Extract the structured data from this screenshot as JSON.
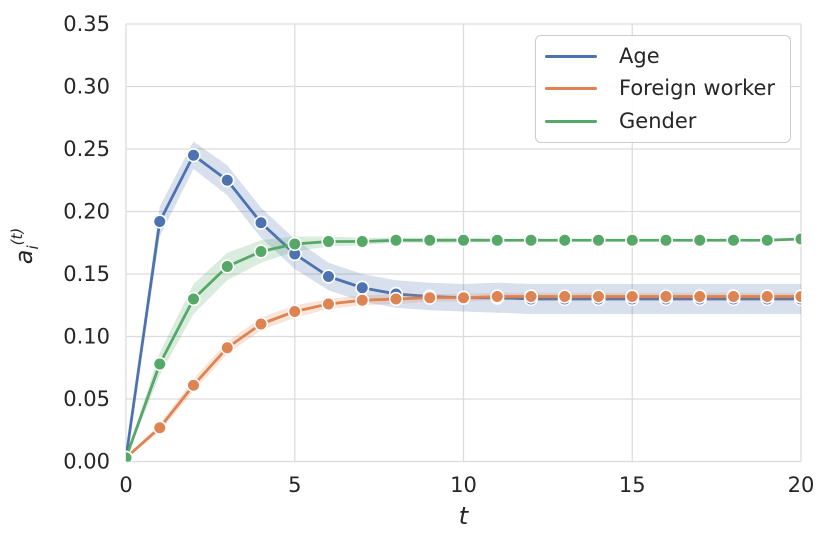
{
  "chart_data": {
    "type": "line",
    "title": "",
    "xlabel": "t",
    "ylabel": "a_i^(t)",
    "ylabel_parts": {
      "base": "a",
      "sub": "i",
      "sup": "(t)"
    },
    "xlim": [
      0,
      20
    ],
    "ylim": [
      0.0,
      0.35
    ],
    "xticks": [
      0,
      5,
      10,
      15,
      20
    ],
    "ytick_labels": [
      "0.00",
      "0.05",
      "0.10",
      "0.15",
      "0.20",
      "0.25",
      "0.30",
      "0.35"
    ],
    "grid": true,
    "legend_position": "upper right",
    "x": [
      0,
      1,
      2,
      3,
      4,
      5,
      6,
      7,
      8,
      9,
      10,
      11,
      12,
      13,
      14,
      15,
      16,
      17,
      18,
      19,
      20
    ],
    "series": [
      {
        "name": "Age",
        "color": "#4C72B0",
        "values": [
          0.003,
          0.192,
          0.245,
          0.225,
          0.191,
          0.166,
          0.148,
          0.139,
          0.134,
          0.132,
          0.131,
          0.131,
          0.13,
          0.13,
          0.13,
          0.13,
          0.13,
          0.13,
          0.13,
          0.13,
          0.13
        ],
        "ci": [
          0.002,
          0.012,
          0.011,
          0.012,
          0.012,
          0.012,
          0.011,
          0.011,
          0.011,
          0.011,
          0.011,
          0.012,
          0.012,
          0.012,
          0.012,
          0.012,
          0.012,
          0.012,
          0.012,
          0.012,
          0.012
        ]
      },
      {
        "name": "Foreign worker",
        "color": "#DD8452",
        "values": [
          0.003,
          0.027,
          0.061,
          0.091,
          0.11,
          0.12,
          0.126,
          0.129,
          0.13,
          0.131,
          0.131,
          0.132,
          0.132,
          0.132,
          0.132,
          0.132,
          0.132,
          0.132,
          0.132,
          0.132,
          0.132
        ],
        "ci": [
          0.001,
          0.003,
          0.005,
          0.005,
          0.005,
          0.005,
          0.004,
          0.004,
          0.004,
          0.003,
          0.003,
          0.003,
          0.003,
          0.003,
          0.003,
          0.003,
          0.003,
          0.003,
          0.003,
          0.003,
          0.003
        ]
      },
      {
        "name": "Gender",
        "color": "#55A868",
        "values": [
          0.003,
          0.078,
          0.13,
          0.156,
          0.168,
          0.174,
          0.176,
          0.176,
          0.177,
          0.177,
          0.177,
          0.177,
          0.177,
          0.177,
          0.177,
          0.177,
          0.177,
          0.177,
          0.177,
          0.177,
          0.178
        ],
        "ci": [
          0.001,
          0.009,
          0.012,
          0.011,
          0.009,
          0.006,
          0.004,
          0.003,
          0.002,
          0.002,
          0.002,
          0.001,
          0.001,
          0.001,
          0.001,
          0.001,
          0.001,
          0.001,
          0.001,
          0.001,
          0.001
        ]
      }
    ]
  },
  "style": {
    "grid_color": "#DCDCDC",
    "text_color": "#262626",
    "background": "#FFFFFF",
    "legend_border": "#CCCCCC",
    "band_opacity": 0.22,
    "line_width": 2.8,
    "marker_radius": 6.3
  }
}
